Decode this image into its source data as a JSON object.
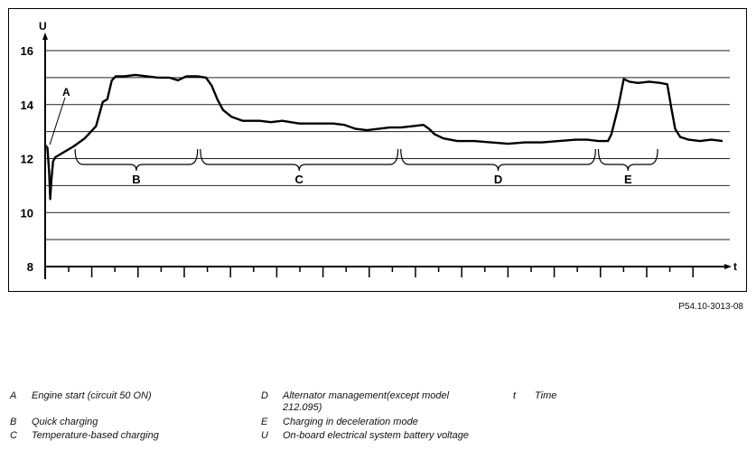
{
  "chart_data": {
    "type": "line",
    "ylabel": "U",
    "xlabel": "t",
    "yticks": [
      8,
      10,
      12,
      14,
      16
    ],
    "ylim": [
      8,
      17
    ],
    "grid": true,
    "series": [
      {
        "points": [
          [
            0.0,
            12.5
          ],
          [
            0.4,
            12.4
          ],
          [
            0.7,
            11.5
          ],
          [
            0.9,
            10.5
          ],
          [
            1.1,
            11.2
          ],
          [
            1.4,
            11.9
          ],
          [
            1.8,
            12.05
          ],
          [
            3.0,
            12.2
          ],
          [
            5.0,
            12.45
          ],
          [
            7.0,
            12.75
          ],
          [
            9.0,
            13.2
          ],
          [
            10.2,
            14.1
          ],
          [
            11.0,
            14.2
          ],
          [
            11.8,
            14.9
          ],
          [
            12.5,
            15.05
          ],
          [
            14.0,
            15.05
          ],
          [
            16.0,
            15.1
          ],
          [
            18.0,
            15.05
          ],
          [
            20.0,
            15.0
          ],
          [
            22.0,
            15.0
          ],
          [
            23.5,
            14.9
          ],
          [
            25.0,
            15.05
          ],
          [
            27.0,
            15.05
          ],
          [
            28.5,
            15.0
          ],
          [
            29.5,
            14.7
          ],
          [
            30.5,
            14.2
          ],
          [
            31.5,
            13.8
          ],
          [
            33.0,
            13.55
          ],
          [
            35.0,
            13.4
          ],
          [
            38.0,
            13.4
          ],
          [
            40.0,
            13.35
          ],
          [
            42.0,
            13.4
          ],
          [
            45.0,
            13.3
          ],
          [
            48.0,
            13.3
          ],
          [
            51.0,
            13.3
          ],
          [
            53.0,
            13.25
          ],
          [
            55.0,
            13.1
          ],
          [
            57.0,
            13.05
          ],
          [
            59.0,
            13.1
          ],
          [
            61.0,
            13.15
          ],
          [
            63.0,
            13.15
          ],
          [
            65.0,
            13.2
          ],
          [
            67.0,
            13.25
          ],
          [
            68.0,
            13.1
          ],
          [
            69.0,
            12.9
          ],
          [
            70.5,
            12.75
          ],
          [
            73.0,
            12.65
          ],
          [
            76.0,
            12.65
          ],
          [
            79.0,
            12.6
          ],
          [
            82.0,
            12.55
          ],
          [
            85.0,
            12.6
          ],
          [
            88.0,
            12.6
          ],
          [
            91.0,
            12.65
          ],
          [
            94.0,
            12.7
          ],
          [
            96.0,
            12.7
          ],
          [
            98.0,
            12.65
          ],
          [
            99.7,
            12.65
          ],
          [
            100.3,
            12.9
          ],
          [
            101.5,
            13.9
          ],
          [
            102.5,
            14.95
          ],
          [
            103.5,
            14.85
          ],
          [
            105.0,
            14.8
          ],
          [
            107.0,
            14.85
          ],
          [
            109.0,
            14.8
          ],
          [
            110.2,
            14.75
          ],
          [
            110.9,
            13.9
          ],
          [
            111.6,
            13.1
          ],
          [
            112.5,
            12.8
          ],
          [
            114.0,
            12.7
          ],
          [
            116.0,
            12.65
          ],
          [
            118.0,
            12.7
          ],
          [
            120.0,
            12.65
          ]
        ]
      }
    ],
    "phases": [
      {
        "label": "B",
        "start": 5.3,
        "end": 27.0
      },
      {
        "label": "C",
        "start": 27.5,
        "end": 62.5
      },
      {
        "label": "D",
        "start": 63.0,
        "end": 97.5
      },
      {
        "label": "E",
        "start": 98.0,
        "end": 108.5
      }
    ],
    "annotation": {
      "label": "A",
      "at": [
        0.5,
        12.45
      ]
    }
  },
  "reference": "P54.10-3013-08",
  "legend": [
    {
      "letter": "A",
      "text": "Engine start (circuit 50 ON)"
    },
    {
      "letter": "B",
      "text": "Quick charging"
    },
    {
      "letter": "C",
      "text": "Temperature-based charging"
    },
    {
      "letter": "D",
      "text": "Alternator management(except model 212.095)"
    },
    {
      "letter": "E",
      "text": "Charging in deceleration mode"
    },
    {
      "letter": "U",
      "text": "On-board electrical system battery voltage"
    },
    {
      "letter": "t",
      "text": "Time"
    }
  ]
}
